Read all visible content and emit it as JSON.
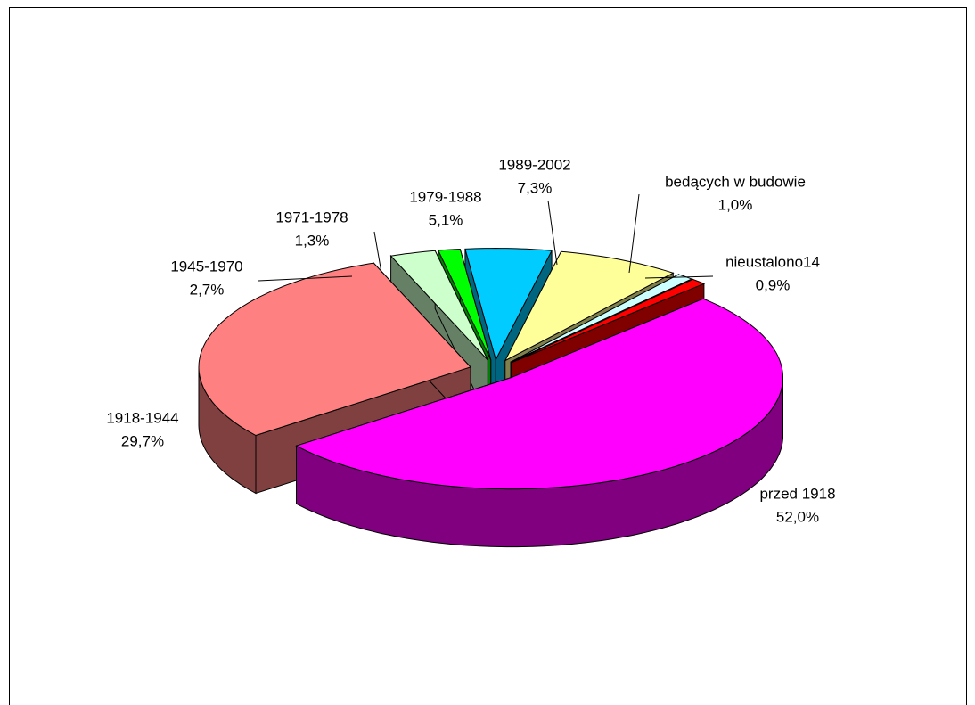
{
  "chart_data": {
    "type": "pie3d",
    "categories": [
      "przed 1918",
      "1918-1944",
      "1945-1970",
      "1971-1978",
      "1979-1988",
      "1989-2002",
      "bedących w budowie",
      "nieustalono14"
    ],
    "values": [
      52.0,
      29.7,
      2.7,
      1.3,
      5.1,
      7.3,
      1.0,
      0.9
    ],
    "value_labels": [
      "52,0%",
      "29,7%",
      "2,7%",
      "1,3%",
      "5,1%",
      "7,3%",
      "1,0%",
      "0,9%"
    ],
    "colors": [
      "#ff00ff",
      "#ff8080",
      "#ccffcc",
      "#00ff00",
      "#00ccff",
      "#ffff99",
      "#ccffff",
      "#ff0000"
    ]
  }
}
